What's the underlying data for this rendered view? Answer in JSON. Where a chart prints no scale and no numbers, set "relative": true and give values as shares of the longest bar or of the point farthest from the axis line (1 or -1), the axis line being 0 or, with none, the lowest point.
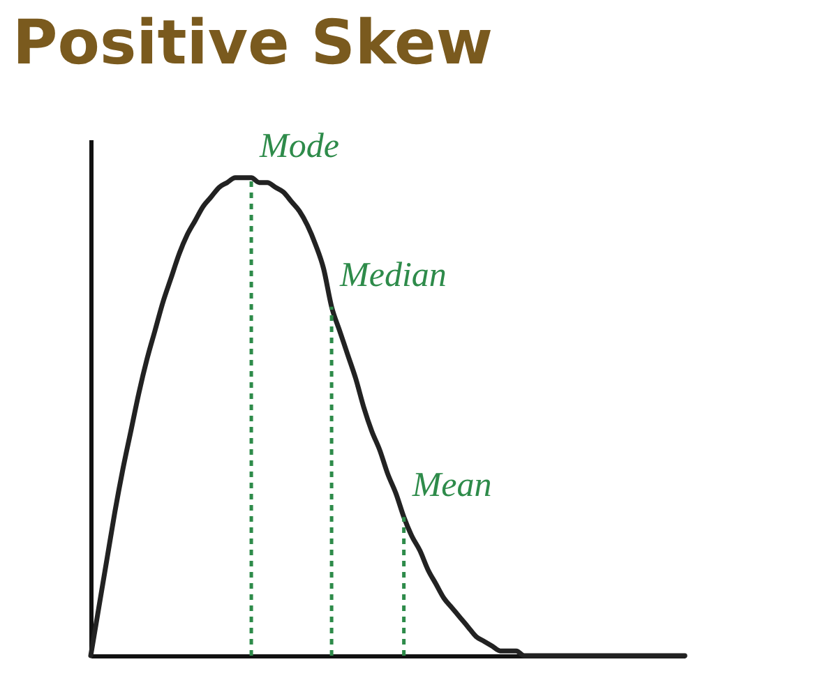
{
  "chart_data": {
    "type": "line",
    "title": "Positive Skew",
    "relative": true,
    "categories": [
      null,
      null,
      null,
      null,
      null,
      null,
      null,
      null,
      null,
      null,
      null,
      null,
      null,
      null,
      null,
      null,
      null,
      null,
      null,
      null,
      null,
      null,
      null,
      null,
      null,
      null,
      null,
      null,
      null,
      null,
      null,
      null,
      null,
      null,
      null,
      null,
      null,
      null,
      null,
      null,
      null,
      null,
      null,
      null,
      null,
      null,
      null,
      null,
      null,
      null,
      null,
      null,
      null,
      null,
      null,
      null,
      null,
      null,
      null,
      null,
      null,
      null,
      null,
      null,
      null,
      null,
      null,
      null,
      null,
      null,
      null,
      null,
      null,
      null,
      null
    ],
    "series": [
      {
        "color": "#222222",
        "values": [
          0,
          0.1,
          0.2,
          0.3,
          0.39,
          0.47,
          0.55,
          0.62,
          0.68,
          0.74,
          0.79,
          0.84,
          0.88,
          0.91,
          0.94,
          0.96,
          0.98,
          0.99,
          1,
          1,
          1,
          0.99,
          0.99,
          0.98,
          0.97,
          0.95,
          0.93,
          0.9,
          0.86,
          0.81,
          0.73,
          0.68,
          0.63,
          0.58,
          0.52,
          0.47,
          0.43,
          0.38,
          0.34,
          0.29,
          0.25,
          0.22,
          0.18,
          0.15,
          0.12,
          0.1,
          0.08,
          0.06,
          0.04,
          0.03,
          0.02,
          0.01,
          0.01,
          0.01,
          0,
          0,
          0,
          0,
          0,
          0,
          0,
          0,
          0,
          0,
          0,
          0,
          0,
          0,
          0,
          0,
          0,
          0,
          0,
          0,
          0
        ]
      }
    ],
    "annotations": [
      "Mode",
      "Median",
      "Mean"
    ]
  }
}
